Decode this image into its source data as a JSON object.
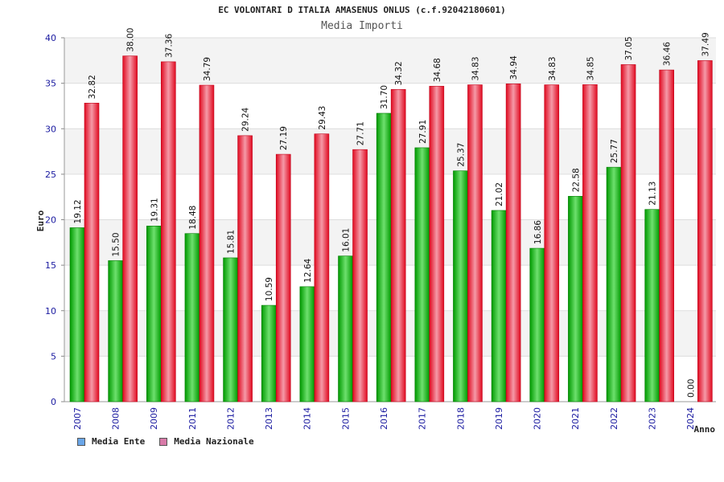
{
  "chart_data": {
    "type": "bar",
    "title": "EC VOLONTARI D ITALIA AMASENUS ONLUS (c.f.92042180601)",
    "subtitle": "Media Importi",
    "xlabel": "Anno",
    "ylabel": "Euro",
    "ylim": [
      0,
      40
    ],
    "yticks": [
      0,
      5,
      10,
      15,
      20,
      25,
      30,
      35,
      40
    ],
    "categories": [
      "2007",
      "2008",
      "2009",
      "2011",
      "2012",
      "2013",
      "2014",
      "2015",
      "2016",
      "2017",
      "2018",
      "2019",
      "2020",
      "2021",
      "2022",
      "2023",
      "2024"
    ],
    "series": [
      {
        "name": "Media Ente",
        "color": "#00b000",
        "values": [
          19.12,
          15.5,
          19.31,
          18.48,
          15.81,
          10.59,
          12.64,
          16.01,
          31.7,
          27.91,
          25.37,
          21.02,
          16.86,
          22.58,
          25.77,
          21.13,
          0.0
        ],
        "labels": [
          "19.12",
          "15.50",
          "19.31",
          "18.48",
          "15.81",
          "10.59",
          "12.64",
          "16.01",
          "31.70",
          "27.91",
          "25.37",
          "21.02",
          "16.86",
          "22.58",
          "25.77",
          "21.13",
          "0.00"
        ]
      },
      {
        "name": "Media Nazionale",
        "color": "#e8102a",
        "values": [
          32.82,
          38.0,
          37.36,
          34.79,
          29.24,
          27.19,
          29.43,
          27.71,
          34.32,
          34.68,
          34.83,
          34.94,
          34.83,
          34.85,
          37.05,
          36.46,
          37.49
        ],
        "labels": [
          "32.82",
          "38.00",
          "37.36",
          "34.79",
          "29.24",
          "27.19",
          "29.43",
          "27.71",
          "34.32",
          "34.68",
          "34.83",
          "34.94",
          "34.83",
          "34.85",
          "37.05",
          "36.46",
          "37.49"
        ]
      }
    ],
    "legend": [
      {
        "label": "Media Ente",
        "color": "#6aa6e8"
      },
      {
        "label": "Media Nazionale",
        "color": "#d87aa8"
      }
    ]
  }
}
